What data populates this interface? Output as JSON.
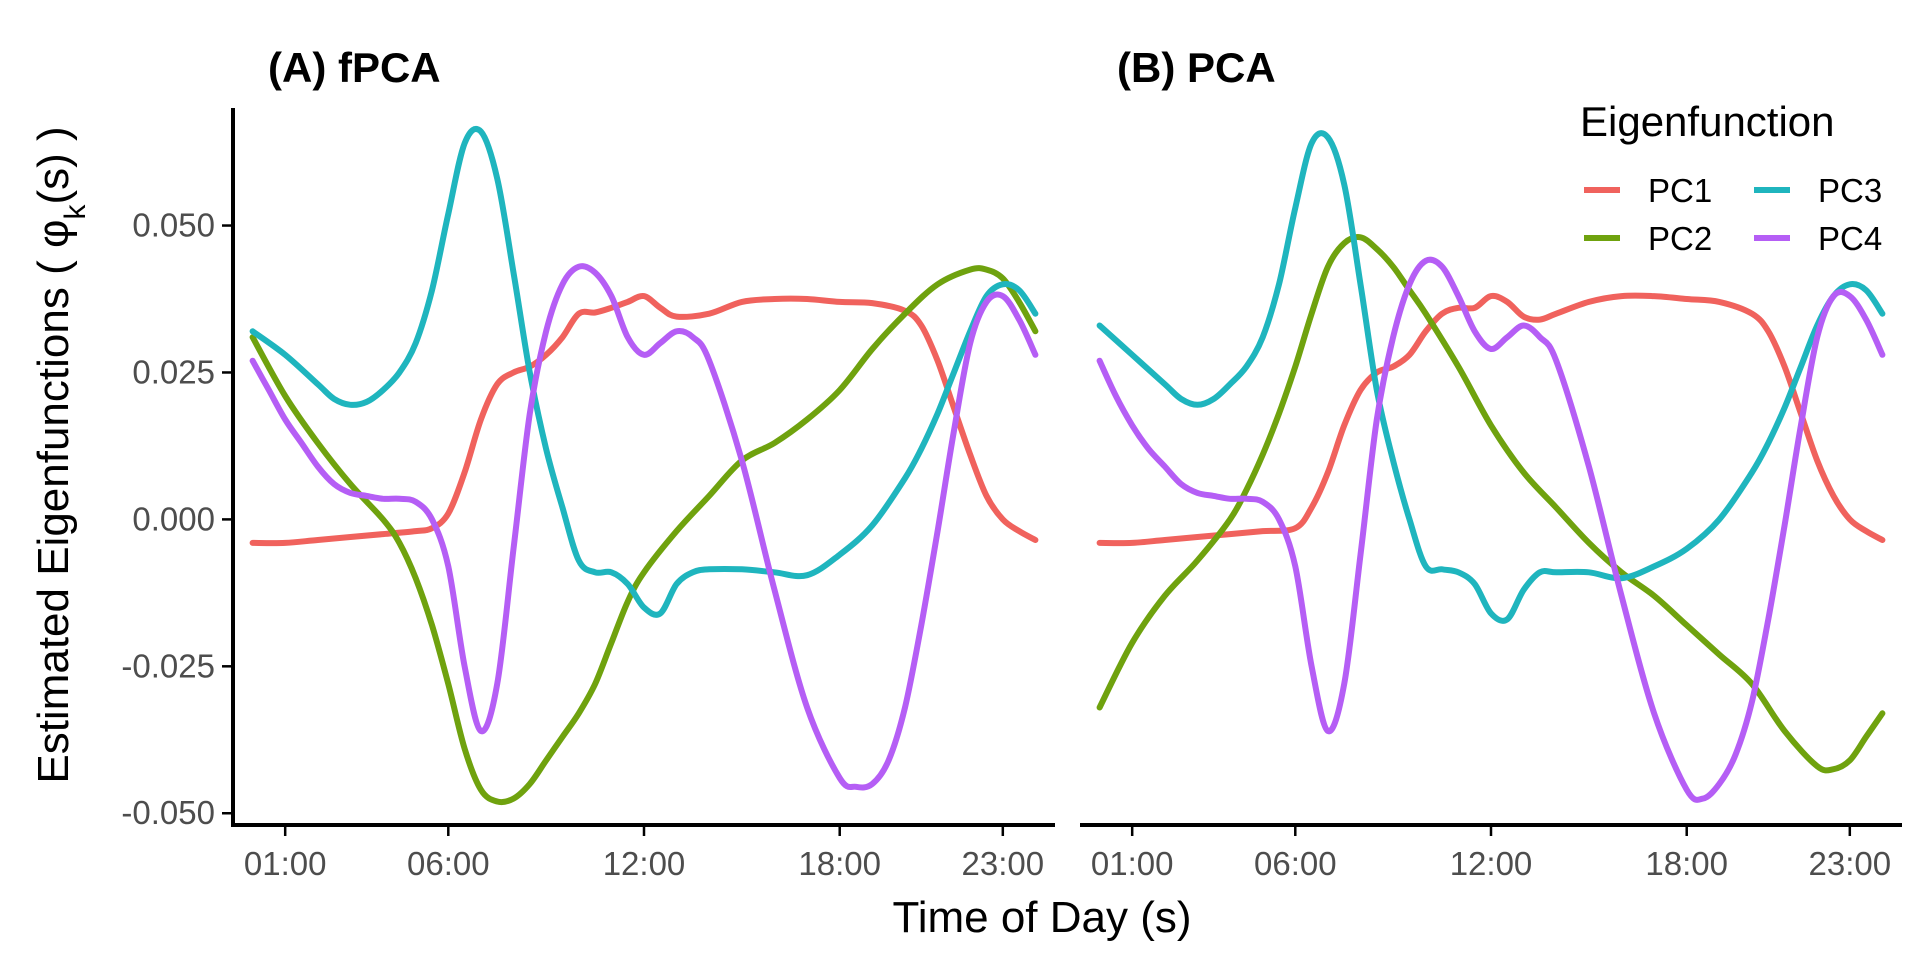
{
  "figure": {
    "ylabel": "Estimated Eigenfunctions ( φ",
    "ylabel_sub": "k",
    "ylabel_tail": "(s) )",
    "xlabel": "Time of Day (s)"
  },
  "legend": {
    "title": "Eigenfunction",
    "items": [
      {
        "name": "PC1",
        "color": "#F0625D"
      },
      {
        "name": "PC2",
        "color": "#6FA20E"
      },
      {
        "name": "PC3",
        "color": "#1FB5BE"
      },
      {
        "name": "PC4",
        "color": "#B55EF5"
      }
    ]
  },
  "chart_data": [
    {
      "type": "line",
      "title": "(A) fPCA",
      "xlabel": "Time of Day (s)",
      "ylabel": "Estimated Eigenfunctions ( φk(s) )",
      "x_unit": "hours",
      "xlim": [
        -0.6,
        24.6
      ],
      "ylim": [
        -0.052,
        0.07
      ],
      "x_ticks": [
        1,
        6,
        12,
        18,
        23
      ],
      "x_tick_labels": [
        "01:00",
        "06:00",
        "12:00",
        "18:00",
        "23:00"
      ],
      "y_ticks": [
        -0.05,
        -0.025,
        0,
        0.025,
        0.05
      ],
      "y_tick_labels": [
        "-0.050",
        "-0.025",
        "0.000",
        "0.025",
        "0.050"
      ],
      "grid": false,
      "legend_position": "none",
      "series": [
        {
          "name": "PC1",
          "color": "#F0625D",
          "x": [
            0,
            1,
            2,
            3,
            4,
            5,
            5.5,
            6,
            6.5,
            7,
            7.5,
            8,
            8.5,
            9,
            9.5,
            10,
            10.5,
            11,
            11.5,
            12,
            12.5,
            13,
            14,
            15,
            16,
            17,
            18,
            19,
            20,
            20.5,
            21,
            21.5,
            22,
            22.5,
            23,
            23.5,
            24
          ],
          "y": [
            -0.004,
            -0.004,
            -0.0035,
            -0.003,
            -0.0025,
            -0.002,
            -0.0015,
            0.001,
            0.008,
            0.017,
            0.023,
            0.025,
            0.026,
            0.028,
            0.031,
            0.035,
            0.0352,
            0.036,
            0.037,
            0.038,
            0.036,
            0.0345,
            0.035,
            0.037,
            0.0375,
            0.0375,
            0.037,
            0.0368,
            0.0355,
            0.033,
            0.027,
            0.019,
            0.011,
            0.004,
            0.0,
            -0.002,
            -0.0035
          ]
        },
        {
          "name": "PC2",
          "color": "#6FA20E",
          "x": [
            0,
            1,
            2,
            3,
            4,
            4.5,
            5,
            5.5,
            6,
            6.5,
            7,
            7.5,
            8,
            8.5,
            9,
            9.5,
            10,
            10.5,
            11,
            11.5,
            12,
            13,
            14,
            15,
            16,
            17,
            18,
            19,
            20,
            21,
            22,
            22.5,
            23,
            23.5,
            24
          ],
          "y": [
            0.031,
            0.021,
            0.013,
            0.006,
            0.0,
            -0.004,
            -0.01,
            -0.018,
            -0.028,
            -0.039,
            -0.046,
            -0.048,
            -0.0475,
            -0.045,
            -0.041,
            -0.037,
            -0.033,
            -0.028,
            -0.021,
            -0.014,
            -0.009,
            -0.002,
            0.004,
            0.01,
            0.013,
            0.017,
            0.022,
            0.029,
            0.035,
            0.04,
            0.0425,
            0.0425,
            0.041,
            0.037,
            0.032
          ]
        },
        {
          "name": "PC3",
          "color": "#1FB5BE",
          "x": [
            0,
            1,
            2,
            2.5,
            3,
            3.5,
            4,
            4.5,
            5,
            5.5,
            6,
            6.5,
            7,
            7.5,
            8,
            8.5,
            9,
            9.5,
            10,
            10.5,
            11,
            11.5,
            12,
            12.5,
            13,
            13.5,
            14,
            15,
            16,
            17,
            18,
            19,
            20,
            20.5,
            21,
            21.5,
            22,
            22.5,
            23,
            23.5,
            24
          ],
          "y": [
            0.032,
            0.028,
            0.023,
            0.0205,
            0.0195,
            0.02,
            0.022,
            0.025,
            0.03,
            0.039,
            0.052,
            0.064,
            0.066,
            0.058,
            0.042,
            0.025,
            0.012,
            0.002,
            -0.007,
            -0.009,
            -0.009,
            -0.011,
            -0.015,
            -0.016,
            -0.011,
            -0.009,
            -0.0085,
            -0.0085,
            -0.009,
            -0.0095,
            -0.006,
            -0.001,
            0.007,
            0.012,
            0.018,
            0.025,
            0.032,
            0.038,
            0.04,
            0.039,
            0.035
          ]
        },
        {
          "name": "PC4",
          "color": "#B55EF5",
          "x": [
            0,
            0.5,
            1,
            1.5,
            2,
            2.5,
            3,
            3.5,
            4,
            4.5,
            5,
            5.5,
            6,
            6.5,
            7,
            7.5,
            8,
            8.5,
            9,
            9.5,
            10,
            10.5,
            11,
            11.5,
            12,
            12.5,
            13,
            13.5,
            14,
            15,
            16,
            17,
            18,
            18.5,
            19,
            19.5,
            20,
            20.5,
            21,
            21.5,
            22,
            22.5,
            23,
            23.5,
            24
          ],
          "y": [
            0.027,
            0.022,
            0.017,
            0.013,
            0.009,
            0.006,
            0.0045,
            0.004,
            0.0035,
            0.0035,
            0.003,
            0.0,
            -0.008,
            -0.025,
            -0.036,
            -0.028,
            -0.005,
            0.018,
            0.032,
            0.04,
            0.043,
            0.042,
            0.038,
            0.031,
            0.028,
            0.03,
            0.032,
            0.031,
            0.027,
            0.01,
            -0.012,
            -0.032,
            -0.044,
            -0.0455,
            -0.045,
            -0.041,
            -0.032,
            -0.018,
            -0.002,
            0.015,
            0.03,
            0.037,
            0.038,
            0.034,
            0.028
          ]
        }
      ]
    },
    {
      "type": "line",
      "title": "(B) PCA",
      "xlabel": "Time of Day (s)",
      "x_unit": "hours",
      "xlim": [
        -0.6,
        24.6
      ],
      "ylim": [
        -0.052,
        0.07
      ],
      "x_ticks": [
        1,
        6,
        12,
        18,
        23
      ],
      "x_tick_labels": [
        "01:00",
        "06:00",
        "12:00",
        "18:00",
        "23:00"
      ],
      "grid": false,
      "legend_position": "top-right",
      "series": [
        {
          "name": "PC1",
          "color": "#F0625D",
          "x": [
            0,
            1,
            2,
            3,
            4,
            5,
            6,
            6.5,
            7,
            7.5,
            8,
            8.5,
            9,
            9.5,
            10,
            10.5,
            11,
            11.5,
            12,
            12.5,
            13,
            13.5,
            14,
            15,
            16,
            17,
            18,
            19,
            20,
            20.5,
            21,
            21.5,
            22,
            22.5,
            23,
            23.5,
            24
          ],
          "y": [
            -0.004,
            -0.004,
            -0.0035,
            -0.003,
            -0.0025,
            -0.002,
            -0.0015,
            0.002,
            0.008,
            0.016,
            0.022,
            0.025,
            0.026,
            0.028,
            0.032,
            0.035,
            0.036,
            0.036,
            0.038,
            0.037,
            0.0345,
            0.034,
            0.035,
            0.037,
            0.038,
            0.038,
            0.0375,
            0.037,
            0.035,
            0.032,
            0.026,
            0.018,
            0.01,
            0.004,
            0.0,
            -0.002,
            -0.0035
          ]
        },
        {
          "name": "PC2",
          "color": "#6FA20E",
          "x": [
            0,
            1,
            2,
            3,
            4,
            4.5,
            5,
            5.5,
            6,
            6.5,
            7,
            7.5,
            8,
            8.5,
            9,
            9.5,
            10,
            11,
            12,
            13,
            14,
            15,
            16,
            17,
            18,
            19,
            20,
            21,
            22,
            22.5,
            23,
            23.5,
            24
          ],
          "y": [
            -0.032,
            -0.021,
            -0.013,
            -0.007,
            0.0,
            0.005,
            0.011,
            0.018,
            0.026,
            0.035,
            0.043,
            0.047,
            0.048,
            0.046,
            0.043,
            0.039,
            0.035,
            0.026,
            0.016,
            0.008,
            0.002,
            -0.004,
            -0.009,
            -0.013,
            -0.018,
            -0.023,
            -0.028,
            -0.036,
            -0.042,
            -0.0425,
            -0.041,
            -0.037,
            -0.033
          ]
        },
        {
          "name": "PC3",
          "color": "#1FB5BE",
          "x": [
            0,
            1,
            2,
            2.5,
            3,
            3.5,
            4,
            4.5,
            5,
            5.5,
            6,
            6.5,
            7,
            7.5,
            8,
            8.5,
            9,
            9.5,
            10,
            10.5,
            11,
            11.5,
            12,
            12.5,
            13,
            13.5,
            14,
            15,
            16,
            17,
            18,
            19,
            20,
            20.5,
            21,
            21.5,
            22,
            22.5,
            23,
            23.5,
            24
          ],
          "y": [
            0.033,
            0.028,
            0.023,
            0.0205,
            0.0195,
            0.0205,
            0.023,
            0.026,
            0.031,
            0.04,
            0.053,
            0.064,
            0.065,
            0.057,
            0.04,
            0.022,
            0.01,
            0.0,
            -0.008,
            -0.0085,
            -0.009,
            -0.011,
            -0.016,
            -0.017,
            -0.012,
            -0.009,
            -0.009,
            -0.009,
            -0.01,
            -0.008,
            -0.005,
            0.0,
            0.008,
            0.013,
            0.019,
            0.026,
            0.033,
            0.038,
            0.04,
            0.039,
            0.035
          ]
        },
        {
          "name": "PC4",
          "color": "#B55EF5",
          "x": [
            0,
            0.5,
            1,
            1.5,
            2,
            2.5,
            3,
            3.5,
            4,
            4.5,
            5,
            5.5,
            6,
            6.5,
            7,
            7.5,
            8,
            8.5,
            9,
            9.5,
            10,
            10.5,
            11,
            11.5,
            12,
            12.5,
            13,
            13.5,
            14,
            15,
            16,
            17,
            18,
            18.5,
            19,
            19.5,
            20,
            20.5,
            21,
            21.5,
            22,
            22.5,
            23,
            23.5,
            24
          ],
          "y": [
            0.027,
            0.021,
            0.016,
            0.012,
            0.009,
            0.006,
            0.0045,
            0.004,
            0.0035,
            0.0035,
            0.003,
            0.0,
            -0.008,
            -0.025,
            -0.036,
            -0.028,
            -0.006,
            0.017,
            0.031,
            0.04,
            0.044,
            0.043,
            0.038,
            0.032,
            0.029,
            0.031,
            0.033,
            0.031,
            0.027,
            0.009,
            -0.013,
            -0.033,
            -0.046,
            -0.0475,
            -0.045,
            -0.04,
            -0.031,
            -0.017,
            -0.001,
            0.016,
            0.031,
            0.038,
            0.038,
            0.034,
            0.028
          ]
        }
      ]
    }
  ]
}
